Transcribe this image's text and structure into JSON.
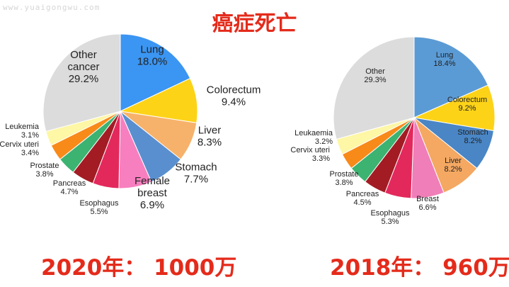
{
  "watermark": "www.yuaigongwu.com",
  "title": "癌症死亡",
  "chart_data": [
    {
      "type": "pie",
      "caption": "2020年： 1000万",
      "slices": [
        {
          "label": [
            "Lung",
            "18.0%"
          ],
          "value": 18.0,
          "color": "#3b95f2"
        },
        {
          "label": [
            "Colorectum",
            "9.4%"
          ],
          "value": 9.4,
          "color": "#fdd318"
        },
        {
          "label": [
            "Liver",
            "8.3%"
          ],
          "value": 8.3,
          "color": "#f6b26b"
        },
        {
          "label": [
            "Stomach",
            "7.7%"
          ],
          "value": 7.7,
          "color": "#5a8fcf"
        },
        {
          "label": [
            "Female",
            "breast",
            "6.9%"
          ],
          "value": 6.9,
          "color": "#f77fbf"
        },
        {
          "label": [
            "Esophagus",
            "5.5%"
          ],
          "value": 5.5,
          "color": "#e3295c"
        },
        {
          "label": [
            "Pancreas",
            "4.7%"
          ],
          "value": 4.7,
          "color": "#a31c24"
        },
        {
          "label": [
            "Prostate",
            "3.8%"
          ],
          "value": 3.8,
          "color": "#3cb371"
        },
        {
          "label": [
            "Cervix uteri",
            "3.4%"
          ],
          "value": 3.4,
          "color": "#f88a1a"
        },
        {
          "label": [
            "Leukemia",
            "3.1%"
          ],
          "value": 3.1,
          "color": "#fdf7a6"
        },
        {
          "label": [
            "Other",
            "cancer",
            "29.2%"
          ],
          "value": 29.2,
          "color": "#dcdcdc"
        }
      ]
    },
    {
      "type": "pie",
      "caption": "2018年： 960万",
      "slices": [
        {
          "label": [
            "Lung",
            "18.4%"
          ],
          "value": 18.4,
          "color": "#5b9bd5"
        },
        {
          "label": [
            "Colorectum",
            "9.2%"
          ],
          "value": 9.2,
          "color": "#fdd318"
        },
        {
          "label": [
            "Stomach",
            "8.2%"
          ],
          "value": 8.2,
          "color": "#4a86c5"
        },
        {
          "label": [
            "Liver",
            "8.2%"
          ],
          "value": 8.2,
          "color": "#f4a862"
        },
        {
          "label": [
            "Breast",
            "6.6%"
          ],
          "value": 6.6,
          "color": "#f07eb8"
        },
        {
          "label": [
            "Esophagus",
            "5.3%"
          ],
          "value": 5.3,
          "color": "#e3295c"
        },
        {
          "label": [
            "Pancreas",
            "4.5%"
          ],
          "value": 4.5,
          "color": "#a31c24"
        },
        {
          "label": [
            "Prostate",
            "3.8%"
          ],
          "value": 3.8,
          "color": "#3cb371"
        },
        {
          "label": [
            "Cervix uteri",
            "3.3%"
          ],
          "value": 3.3,
          "color": "#f88a1a"
        },
        {
          "label": [
            "Leukaemia",
            "3.2%"
          ],
          "value": 3.2,
          "color": "#fdf7a6"
        },
        {
          "label": [
            "Other",
            "29.3%"
          ],
          "value": 29.3,
          "color": "#dcdcdc"
        }
      ]
    }
  ]
}
